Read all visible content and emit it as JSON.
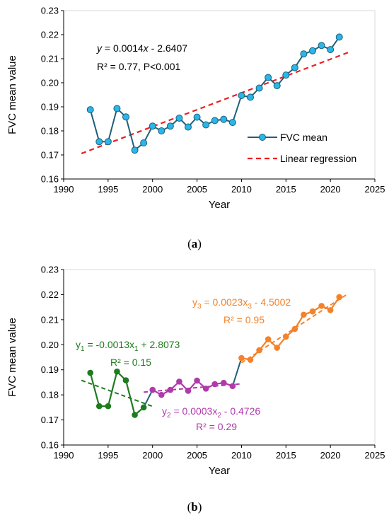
{
  "chart_data": [
    {
      "type": "line",
      "panel_label": "a",
      "xlabel": "Year",
      "ylabel": "FVC mean value",
      "xlim": [
        1990,
        2025
      ],
      "ylim": [
        0.16,
        0.23
      ],
      "x_ticks": [
        "1990",
        "1995",
        "2000",
        "2005",
        "2010",
        "2015",
        "2020",
        "2025"
      ],
      "y_ticks": [
        "0.16",
        "0.17",
        "0.18",
        "0.19",
        "0.20",
        "0.21",
        "0.22",
        "0.23"
      ],
      "x": [
        1993,
        1994,
        1995,
        1996,
        1997,
        1998,
        1999,
        2000,
        2001,
        2002,
        2003,
        2004,
        2005,
        2006,
        2007,
        2008,
        2009,
        2010,
        2011,
        2012,
        2013,
        2014,
        2015,
        2016,
        2017,
        2018,
        2019,
        2020,
        2021
      ],
      "series": [
        {
          "name": "FVC mean",
          "color": "#1f5f7a",
          "marker_color": "#29b6e8",
          "values": [
            0.1888,
            0.1755,
            0.1755,
            0.1893,
            0.1858,
            0.172,
            0.175,
            0.182,
            0.18,
            0.182,
            0.1853,
            0.1816,
            0.1857,
            0.1825,
            0.1843,
            0.1848,
            0.1835,
            0.1947,
            0.194,
            0.1978,
            0.2022,
            0.1988,
            0.2032,
            0.2063,
            0.212,
            0.2133,
            0.2155,
            0.2138,
            0.219
          ]
        }
      ],
      "regression": {
        "name": "Linear regression",
        "color": "#ee1c1c",
        "x_range": [
          1992,
          2022
        ],
        "y_range": [
          0.1706,
          0.2126
        ]
      },
      "legend": {
        "position": "bottom-right",
        "entries": [
          "FVC mean",
          "Linear regression"
        ]
      },
      "annotations": [
        {
          "text_pre": "y",
          "text_mid": " = 0.0014",
          "text_x": "x",
          "text_post": " - 2.6407"
        },
        {
          "text": "R² = 0.77, P<0.001"
        }
      ]
    },
    {
      "type": "line",
      "panel_label": "b",
      "xlabel": "Year",
      "ylabel": "FVC mean value",
      "xlim": [
        1990,
        2025
      ],
      "ylim": [
        0.16,
        0.23
      ],
      "x_ticks": [
        "1990",
        "1995",
        "2000",
        "2005",
        "2010",
        "2015",
        "2020",
        "2025"
      ],
      "y_ticks": [
        "0.16",
        "0.17",
        "0.18",
        "0.19",
        "0.20",
        "0.21",
        "0.22",
        "0.23"
      ],
      "base_line_color": "#1f5f7a",
      "segments": [
        {
          "color": "#1e7b1e",
          "x": [
            1993,
            1994,
            1995,
            1996,
            1997,
            1998,
            1999
          ],
          "values": [
            0.1888,
            0.1755,
            0.1755,
            0.1893,
            0.1858,
            0.172,
            0.175
          ],
          "fit": {
            "x_range": [
              1992,
              2000
            ],
            "y_range": [
              0.1858,
              0.1754
            ]
          },
          "equation": {
            "y": "y",
            "ysub": "1",
            "body": " = -0.0013x",
            "xsub": "1",
            "tail": " + 2.8073"
          },
          "r2": "R² = 0.15"
        },
        {
          "color": "#b03aaa",
          "x": [
            2000,
            2001,
            2002,
            2003,
            2004,
            2005,
            2006,
            2007,
            2008,
            2009
          ],
          "values": [
            0.182,
            0.18,
            0.182,
            0.1853,
            0.1816,
            0.1857,
            0.1825,
            0.1843,
            0.1848,
            0.1835
          ],
          "fit": {
            "x_range": [
              1999,
              2010
            ],
            "y_range": [
              0.1811,
              0.1844
            ]
          },
          "equation": {
            "y": "y",
            "ysub": "2",
            "body": " = 0.0003x",
            "xsub": "2",
            "tail": " - 0.4726"
          },
          "r2": "R² = 0.29"
        },
        {
          "color": "#f5822a",
          "x": [
            2010,
            2011,
            2012,
            2013,
            2014,
            2015,
            2016,
            2017,
            2018,
            2019,
            2020,
            2021
          ],
          "values": [
            0.1947,
            0.194,
            0.1978,
            0.2022,
            0.1988,
            0.2032,
            0.2063,
            0.212,
            0.2133,
            0.2155,
            0.2138,
            0.219
          ],
          "fit": {
            "x_range": [
              2010,
              2022
            ],
            "y_range": [
              0.1928,
              0.2204
            ]
          },
          "equation": {
            "y": "y",
            "ysub": "3",
            "body": " = 0.0023x",
            "xsub": "3",
            "tail": " - 4.5002"
          },
          "r2": "R² = 0.95"
        }
      ]
    }
  ]
}
